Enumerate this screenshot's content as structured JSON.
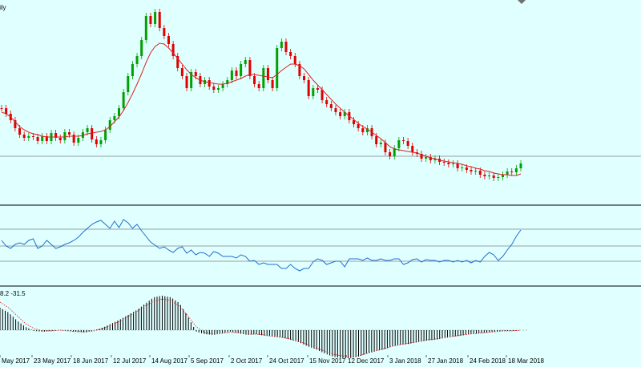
{
  "chart_data": {
    "type": "candlestick",
    "period_label": "ily",
    "indicator_values_label": "8.2 -31.5",
    "x_labels": [
      "May 2017",
      "23 May 2017",
      "18 Jun 2017",
      "12 Jul 2017",
      "14 Aug 2017",
      "5 Sep 2017",
      "2 Oct 2017",
      "24 Oct 2017",
      "15 Nov 2017",
      "12 Dec 2017",
      "3 Jan 2018",
      "27 Jan 2018",
      "24 Feb 2018",
      "18 Mar 2018"
    ],
    "colors": {
      "background": "#E0FFFF",
      "bull": "#00A000",
      "bear": "#E00000",
      "moving_average": "#E02020",
      "oscillator": "#1E6FD0",
      "histogram": "#000000",
      "signal": "#E02020",
      "gridline": "#808080",
      "separator": "#000000"
    },
    "price": {
      "closes": [
        135,
        142,
        150,
        160,
        168,
        172,
        170,
        171,
        176,
        170,
        176,
        166,
        172,
        175,
        165,
        168,
        178,
        172,
        165,
        160,
        174,
        180,
        175,
        162,
        150,
        145,
        135,
        115,
        95,
        80,
        70,
        50,
        20,
        30,
        15,
        35,
        45,
        55,
        70,
        85,
        95,
        110,
        90,
        95,
        105,
        100,
        108,
        112,
        110,
        105,
        100,
        88,
        95,
        80,
        75,
        95,
        105,
        110,
        85,
        100,
        110,
        60,
        52,
        65,
        70,
        80,
        95,
        100,
        120,
        110,
        112,
        125,
        130,
        135,
        140,
        145,
        140,
        150,
        155,
        160,
        165,
        160,
        170,
        180,
        178,
        190,
        195,
        185,
        175,
        176,
        182,
        190,
        192,
        198,
        196,
        200,
        198,
        202,
        203,
        205,
        204,
        210,
        209,
        212,
        214,
        213,
        218,
        220,
        219,
        222,
        221,
        218,
        214,
        215,
        210,
        204
      ]
    },
    "moving_average": {
      "values": [
        140,
        142,
        146,
        152,
        158,
        162,
        165,
        167,
        168,
        170,
        171,
        171,
        171,
        171,
        171,
        170,
        170,
        170,
        169,
        167,
        166,
        165,
        164,
        162,
        158,
        152,
        146,
        138,
        128,
        117,
        105,
        92,
        78,
        66,
        58,
        54,
        55,
        60,
        66,
        73,
        80,
        87,
        93,
        97,
        100,
        102,
        103,
        104,
        105,
        105,
        104,
        102,
        100,
        98,
        95,
        93,
        93,
        94,
        95,
        96,
        97,
        93,
        88,
        84,
        80,
        80,
        82,
        86,
        93,
        100,
        106,
        112,
        118,
        124,
        130,
        135,
        140,
        145,
        149,
        154,
        158,
        161,
        165,
        169,
        173,
        178,
        183,
        186,
        187,
        188,
        189,
        190,
        191,
        193,
        195,
        197,
        198,
        200,
        201,
        202,
        203,
        204,
        205,
        207,
        208,
        210,
        211,
        213,
        214,
        216,
        217,
        218,
        218,
        219,
        219,
        217
      ]
    },
    "oscillator": {
      "levels": [
        286,
        307,
        326
      ],
      "values": [
        300,
        307,
        310,
        305,
        303,
        305,
        300,
        298,
        310,
        307,
        300,
        305,
        310,
        308,
        305,
        303,
        300,
        296,
        290,
        285,
        280,
        277,
        275,
        280,
        285,
        276,
        284,
        274,
        278,
        285,
        280,
        288,
        295,
        302,
        306,
        310,
        308,
        312,
        315,
        310,
        308,
        316,
        312,
        318,
        315,
        316,
        320,
        314,
        316,
        320,
        320,
        320,
        322,
        318,
        320,
        326,
        325,
        330,
        328,
        330,
        330,
        330,
        335,
        335,
        330,
        335,
        338,
        335,
        335,
        327,
        323,
        325,
        330,
        328,
        326,
        326,
        333,
        323,
        323,
        323,
        325,
        322,
        325,
        325,
        323,
        325,
        325,
        323,
        323,
        330,
        328,
        324,
        323,
        327,
        324,
        325,
        325,
        327,
        325,
        325,
        327,
        325,
        327,
        325,
        328,
        325,
        327,
        320,
        315,
        318,
        325,
        320,
        312,
        305,
        295,
        287
      ]
    },
    "histogram": {
      "values": [
        28,
        22,
        12,
        4,
        -1,
        -2,
        -1,
        0,
        -1,
        -2,
        -3,
        0,
        3,
        8,
        13,
        19,
        25,
        33,
        41,
        43,
        41,
        34,
        17,
        -2,
        -5,
        -6,
        -4,
        -2,
        -4,
        -6,
        -5,
        -7,
        -8,
        -9,
        -12,
        -15,
        -20,
        -24,
        -29,
        -33,
        -35,
        -35,
        -33,
        -29,
        -26,
        -24,
        -20,
        -18,
        -17,
        -15,
        -13,
        -12,
        -10,
        -8,
        -7,
        -5,
        -4,
        -3,
        -2,
        -1,
        -1,
        0
      ]
    },
    "signal": {
      "values": [
        35,
        28,
        18,
        8,
        2,
        -1,
        -1,
        0,
        -1,
        -2,
        -2,
        -1,
        2,
        6,
        11,
        17,
        23,
        30,
        36,
        39,
        37,
        30,
        18,
        4,
        -3,
        -5,
        -4,
        -3,
        -3,
        -5,
        -5,
        -6,
        -8,
        -9,
        -11,
        -14,
        -18,
        -22,
        -26,
        -30,
        -32,
        -33,
        -32,
        -29,
        -26,
        -23,
        -20,
        -18,
        -16,
        -14,
        -12,
        -11,
        -9,
        -8,
        -6,
        -5,
        -4,
        -3,
        -2,
        -1,
        -1,
        0
      ]
    }
  }
}
